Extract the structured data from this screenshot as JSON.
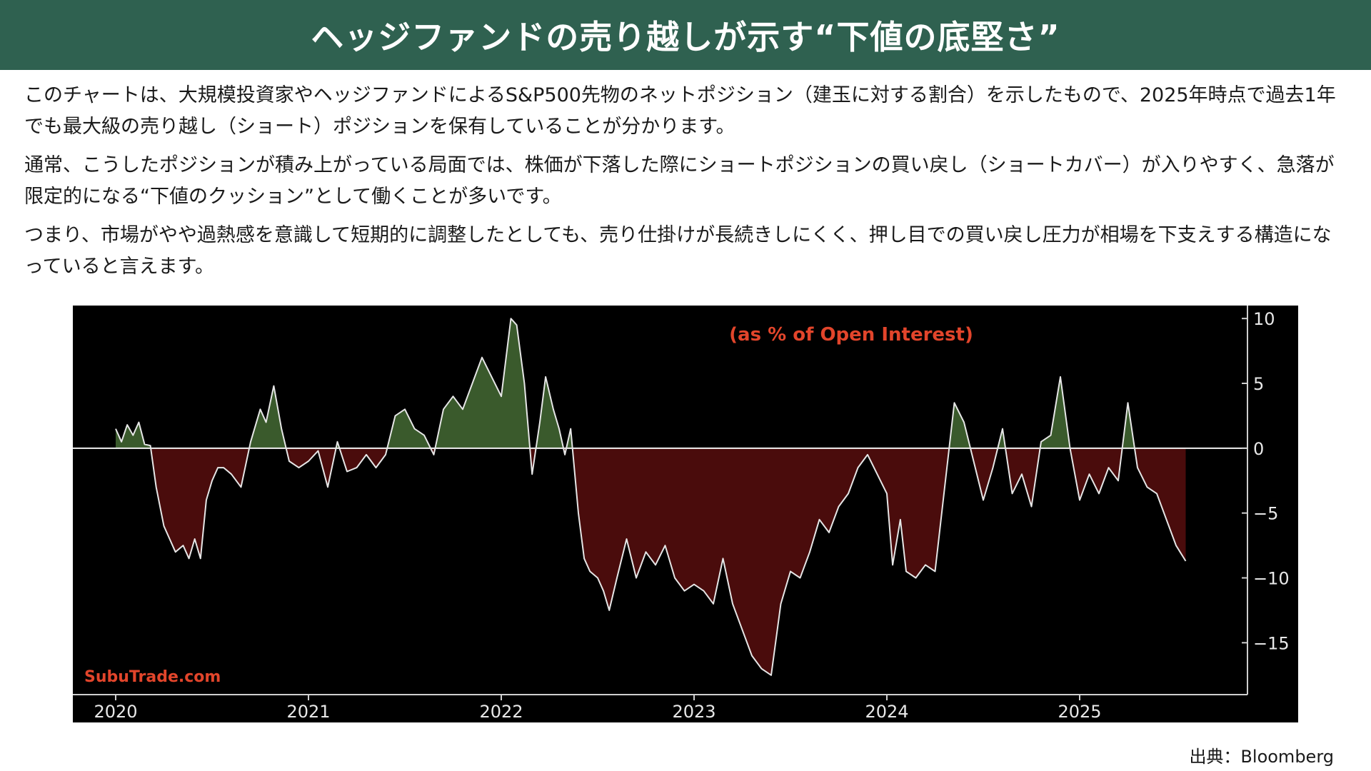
{
  "header": {
    "title": "ヘッジファンドの売り越しが示す“下値の底堅さ”"
  },
  "paragraphs": [
    "このチャートは、大規模投資家やヘッジファンドによるS&P500先物のネットポジション（建玉に対する割合）を示したもので、2025年時点で過去1年でも最大級の売り越し（ショート）ポジションを保有していることが分かります。",
    "通常、こうしたポジションが積み上がっている局面では、株価が下落した際にショートポジションの買い戻し（ショートカバー）が入りやすく、急落が限定的になる“下値のクッション”として働くことが多いです。",
    "つまり、市場がやや過熱感を意識して短期的に調整したとしても、売り仕掛けが長続きしにくく、押し目での買い戻し圧力が相場を下支えする構造になっていると言えます。"
  ],
  "source": "出典：Bloomberg",
  "colors": {
    "banner": "#2f6150",
    "positive_fill": "#3a5a2c",
    "negative_fill": "#4a0c0c",
    "line": "#e6e6e6",
    "accent_red": "#e2452b"
  },
  "chart_data": {
    "type": "area",
    "subtitle": "(as % of Open Interest)",
    "watermark": "SubuTrade.com",
    "xlim": [
      2020.0,
      2025.75
    ],
    "ylim": [
      -19,
      11
    ],
    "x_ticks": [
      2020,
      2021,
      2022,
      2023,
      2024,
      2025
    ],
    "x_tick_labels": [
      "2020",
      "2021",
      "2022",
      "2023",
      "2024",
      "2025"
    ],
    "y_ticks": [
      10,
      5,
      0,
      -5,
      -10,
      -15
    ],
    "y_tick_labels": [
      "10",
      "5",
      "0",
      "−5",
      "−10",
      "−15"
    ],
    "y_axis_side": "right",
    "baseline": 0,
    "series": [
      {
        "x": [
          2020.0,
          2020.03,
          2020.06,
          2020.09,
          2020.12,
          2020.15,
          2020.18,
          2020.21,
          2020.25,
          2020.28,
          2020.31,
          2020.35,
          2020.38,
          2020.41,
          2020.44,
          2020.47,
          2020.5,
          2020.53,
          2020.56,
          2020.6,
          2020.65,
          2020.7,
          2020.75,
          2020.78,
          2020.82,
          2020.86,
          2020.9,
          2020.95,
          2021.0,
          2021.05,
          2021.1,
          2021.15,
          2021.2,
          2021.25,
          2021.3,
          2021.35,
          2021.4,
          2021.45,
          2021.5,
          2021.55,
          2021.6,
          2021.65,
          2021.7,
          2021.75,
          2021.8,
          2021.85,
          2021.9,
          2021.95,
          2022.0,
          2022.05,
          2022.08,
          2022.12,
          2022.16,
          2022.2,
          2022.23,
          2022.27,
          2022.3,
          2022.33,
          2022.36,
          2022.4,
          2022.43,
          2022.46,
          2022.5,
          2022.53,
          2022.56,
          2022.6,
          2022.65,
          2022.7,
          2022.75,
          2022.8,
          2022.85,
          2022.9,
          2022.95,
          2023.0,
          2023.05,
          2023.1,
          2023.15,
          2023.2,
          2023.25,
          2023.3,
          2023.35,
          2023.4,
          2023.45,
          2023.5,
          2023.55,
          2023.6,
          2023.65,
          2023.7,
          2023.75,
          2023.8,
          2023.85,
          2023.9,
          2023.95,
          2024.0,
          2024.03,
          2024.07,
          2024.1,
          2024.15,
          2024.2,
          2024.25,
          2024.3,
          2024.35,
          2024.4,
          2024.45,
          2024.5,
          2024.55,
          2024.6,
          2024.65,
          2024.7,
          2024.75,
          2024.8,
          2024.85,
          2024.9,
          2024.95,
          2025.0,
          2025.05,
          2025.1,
          2025.15,
          2025.2,
          2025.25,
          2025.3,
          2025.35,
          2025.4,
          2025.45,
          2025.5,
          2025.55
        ],
        "values": [
          1.5,
          0.5,
          1.8,
          1.0,
          2.0,
          0.3,
          0.2,
          -3.0,
          -6.0,
          -7.0,
          -8.0,
          -7.5,
          -8.5,
          -7.0,
          -8.5,
          -4.0,
          -2.5,
          -1.5,
          -1.5,
          -2.0,
          -3.0,
          0.5,
          3.0,
          2.0,
          4.8,
          1.5,
          -1.0,
          -1.5,
          -1.0,
          -0.2,
          -3.0,
          0.5,
          -1.8,
          -1.5,
          -0.5,
          -1.5,
          -0.5,
          2.5,
          3.0,
          1.5,
          1.0,
          -0.5,
          3.0,
          4.0,
          3.0,
          5.0,
          7.0,
          5.5,
          4.0,
          10.0,
          9.5,
          5.0,
          -2.0,
          2.0,
          5.5,
          3.0,
          1.5,
          -0.5,
          1.5,
          -5.0,
          -8.5,
          -9.5,
          -10.0,
          -11.0,
          -12.5,
          -10.0,
          -7.0,
          -10.0,
          -8.0,
          -9.0,
          -7.5,
          -10.0,
          -11.0,
          -10.5,
          -11.0,
          -12.0,
          -8.5,
          -12.0,
          -14.0,
          -16.0,
          -17.0,
          -17.5,
          -12.0,
          -9.5,
          -10.0,
          -8.0,
          -5.5,
          -6.5,
          -4.5,
          -3.5,
          -1.5,
          -0.5,
          -2.0,
          -3.5,
          -9.0,
          -5.5,
          -9.5,
          -10.0,
          -9.0,
          -9.5,
          -3.0,
          3.5,
          2.0,
          -1.0,
          -4.0,
          -1.5,
          1.5,
          -3.5,
          -2.0,
          -4.5,
          0.5,
          1.0,
          5.5,
          0.0,
          -4.0,
          -2.0,
          -3.5,
          -1.5,
          -2.5,
          3.5,
          -1.5,
          -3.0,
          -3.5,
          -5.5,
          -7.5,
          -8.7
        ]
      }
    ],
    "grid": false
  }
}
